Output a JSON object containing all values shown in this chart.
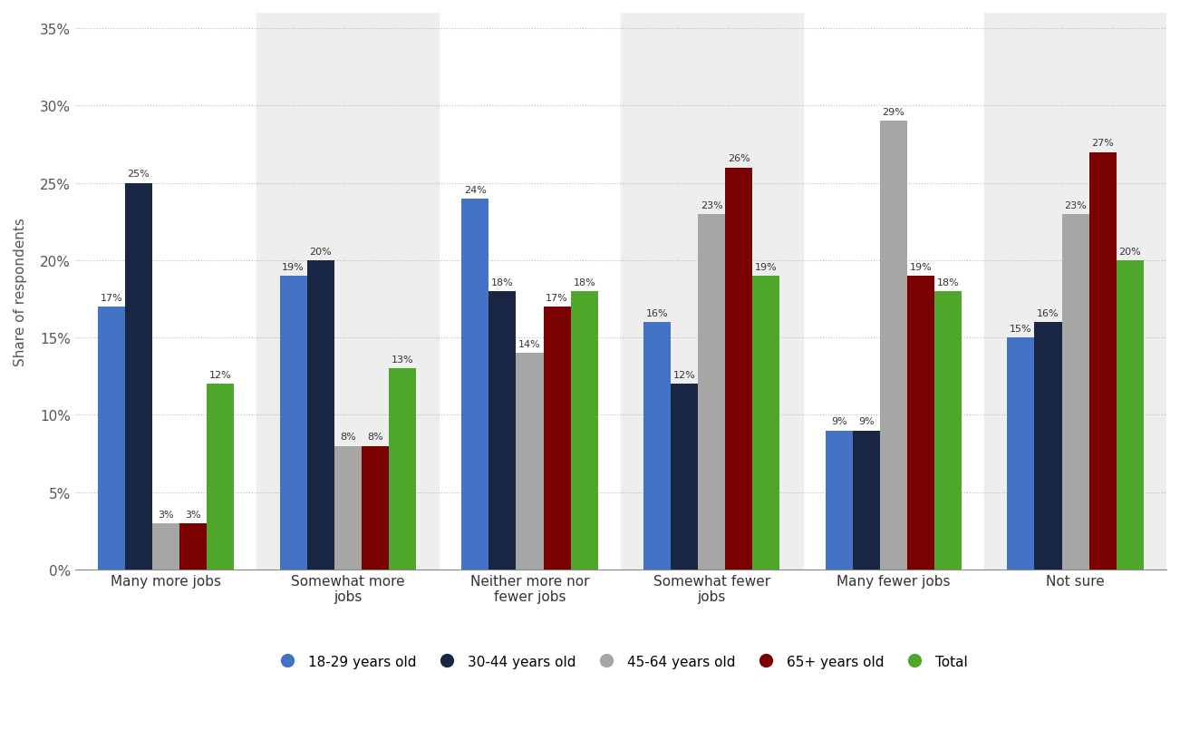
{
  "categories": [
    "Many more jobs",
    "Somewhat more\njobs",
    "Neither more nor\nfewer jobs",
    "Somewhat fewer\njobs",
    "Many fewer jobs",
    "Not sure"
  ],
  "series": {
    "18-29 years old": [
      17,
      19,
      24,
      16,
      9,
      15
    ],
    "30-44 years old": [
      25,
      20,
      18,
      12,
      9,
      16
    ],
    "45-64 years old": [
      3,
      8,
      14,
      23,
      29,
      23
    ],
    "65+ years old": [
      3,
      8,
      17,
      26,
      19,
      27
    ],
    "Total": [
      12,
      13,
      18,
      19,
      18,
      20
    ]
  },
  "colors": {
    "18-29 years old": "#4472C4",
    "30-44 years old": "#1A2744",
    "45-64 years old": "#A6A6A6",
    "65+ years old": "#7B0000",
    "Total": "#4EA72A"
  },
  "ylabel": "Share of respondents",
  "ylim": [
    0,
    36
  ],
  "yticks": [
    0,
    5,
    10,
    15,
    20,
    25,
    30,
    35
  ],
  "ytick_labels": [
    "0%",
    "5%",
    "10%",
    "15%",
    "20%",
    "25%",
    "30%",
    "35%"
  ],
  "background_color": "#ffffff",
  "shaded_categories": [
    1,
    3,
    5
  ],
  "bar_width": 0.15,
  "legend_order": [
    "18-29 years old",
    "30-44 years old",
    "45-64 years old",
    "65+ years old",
    "Total"
  ]
}
